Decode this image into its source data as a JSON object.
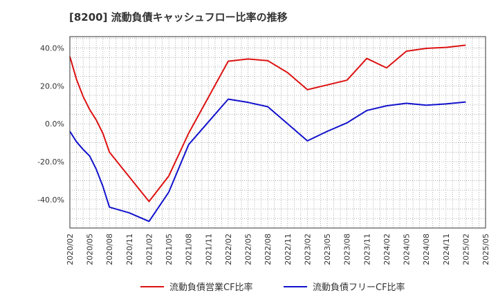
{
  "chart_data": {
    "type": "line",
    "title": "[8200]  流動負債キャッシュフロー比率の推移",
    "xlabel": "",
    "ylabel": "",
    "ylim": [
      -55,
      46
    ],
    "yticks": [
      -40,
      -20,
      0,
      20,
      40
    ],
    "ytick_labels": [
      "-40.0%",
      "-20.0%",
      "0.0%",
      "20.0%",
      "40.0%"
    ],
    "x_range": [
      "2020/02",
      "2025/05"
    ],
    "xtick_labels": [
      "2020/02",
      "2020/05",
      "2020/08",
      "2020/11",
      "2021/02",
      "2021/05",
      "2021/08",
      "2021/11",
      "2022/02",
      "2022/05",
      "2022/08",
      "2022/11",
      "2023/02",
      "2023/05",
      "2023/08",
      "2023/11",
      "2024/02",
      "2024/05",
      "2024/08",
      "2024/11",
      "2025/02",
      "2025/05"
    ],
    "grid": true,
    "legend_position": "bottom",
    "series": [
      {
        "name": "流動負債営業CF比率",
        "color": "#dd1111",
        "points": [
          [
            "2020/02",
            35.5
          ],
          [
            "2020/03",
            23.5
          ],
          [
            "2020/04",
            14.5
          ],
          [
            "2020/05",
            7.5
          ],
          [
            "2020/06",
            2.0
          ],
          [
            "2020/07",
            -5.0
          ],
          [
            "2020/08",
            -15.0
          ],
          [
            "2021/02",
            -41.0
          ],
          [
            "2021/05",
            -27.5
          ],
          [
            "2021/08",
            -5.0
          ],
          [
            "2021/11",
            14.0
          ],
          [
            "2022/02",
            33.0
          ],
          [
            "2022/05",
            34.2
          ],
          [
            "2022/08",
            33.3
          ],
          [
            "2022/11",
            27.0
          ],
          [
            "2023/02",
            18.0
          ],
          [
            "2023/05",
            20.5
          ],
          [
            "2023/08",
            23.0
          ],
          [
            "2023/11",
            34.5
          ],
          [
            "2024/02",
            29.5
          ],
          [
            "2024/05",
            38.3
          ],
          [
            "2024/08",
            39.8
          ],
          [
            "2024/11",
            40.3
          ],
          [
            "2025/02",
            41.5
          ]
        ]
      },
      {
        "name": "流動負債フリーCF比率",
        "color": "#1111cc",
        "points": [
          [
            "2020/02",
            -4.0
          ],
          [
            "2020/03",
            -9.5
          ],
          [
            "2020/04",
            -13.5
          ],
          [
            "2020/05",
            -17.0
          ],
          [
            "2020/06",
            -24.0
          ],
          [
            "2020/07",
            -33.0
          ],
          [
            "2020/08",
            -44.0
          ],
          [
            "2020/11",
            -47.0
          ],
          [
            "2021/02",
            -51.5
          ],
          [
            "2021/05",
            -36.0
          ],
          [
            "2021/08",
            -11.0
          ],
          [
            "2021/11",
            1.0
          ],
          [
            "2022/02",
            13.0
          ],
          [
            "2022/05",
            11.3
          ],
          [
            "2022/08",
            9.0
          ],
          [
            "2022/11",
            0.0
          ],
          [
            "2023/02",
            -9.0
          ],
          [
            "2023/05",
            -4.0
          ],
          [
            "2023/08",
            0.5
          ],
          [
            "2023/11",
            7.0
          ],
          [
            "2024/02",
            9.5
          ],
          [
            "2024/05",
            10.8
          ],
          [
            "2024/08",
            9.8
          ],
          [
            "2024/11",
            10.5
          ],
          [
            "2025/02",
            11.5
          ]
        ]
      }
    ]
  }
}
